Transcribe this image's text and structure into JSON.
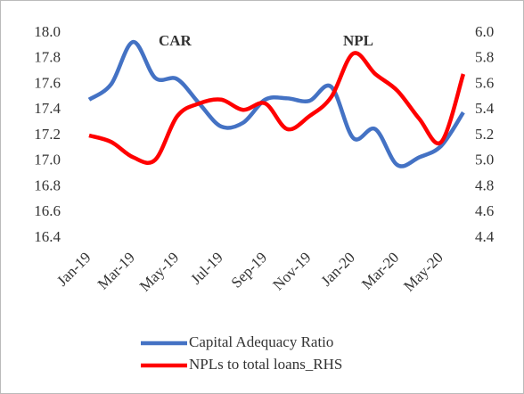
{
  "chart_data": {
    "type": "line",
    "categories": [
      "Jan-19",
      null,
      "Mar-19",
      null,
      "May-19",
      null,
      "Jul-19",
      null,
      "Sep-19",
      null,
      "Nov-19",
      null,
      "Jan-20",
      null,
      "Mar-20",
      null,
      "May-20",
      null
    ],
    "series": [
      {
        "name": "Capital Adequacy Ratio",
        "color": "#4472c4",
        "values": [
          17.48,
          17.6,
          17.93,
          17.65,
          17.64,
          17.45,
          17.27,
          17.3,
          17.48,
          17.49,
          17.47,
          17.58,
          17.18,
          17.25,
          16.97,
          17.03,
          17.12,
          17.38
        ]
      },
      {
        "name": "NPLs to total loans_RHS",
        "color": "#ff0000",
        "axis": "y2",
        "values": [
          5.2,
          5.15,
          5.03,
          5.01,
          5.35,
          5.45,
          5.48,
          5.4,
          5.45,
          5.25,
          5.35,
          5.5,
          5.84,
          5.68,
          5.55,
          5.33,
          5.15,
          5.68
        ]
      }
    ],
    "annotations": [
      {
        "text": "CAR",
        "color": "#2e75b6"
      },
      {
        "text": "NPL",
        "color": "#ff0000"
      }
    ],
    "ylim": [
      16.4,
      18.0
    ],
    "yticks": [
      16.4,
      16.6,
      16.8,
      {
        "value": 17.0,
        "label": "17.0"
      },
      17.2,
      17.4,
      17.6,
      17.8,
      {
        "value": 18.0,
        "label": "18.0"
      }
    ],
    "y2lim": [
      4.4,
      6.0
    ],
    "y2ticks": [
      4.4,
      4.6,
      4.8,
      {
        "value": 5.0,
        "label": "5.0"
      },
      5.2,
      5.4,
      5.6,
      5.8,
      {
        "value": 6.0,
        "label": "6.0"
      }
    ],
    "grid": false,
    "legend": "bottom"
  }
}
